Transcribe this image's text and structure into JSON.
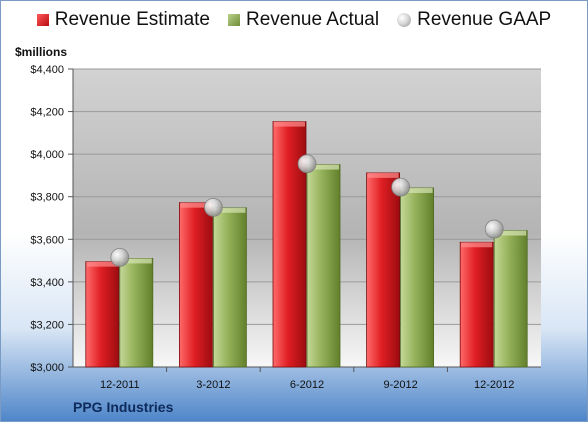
{
  "chart_data": {
    "type": "bar",
    "ylabel": "$millions",
    "categories": [
      "12-2011",
      "3-2012",
      "6-2012",
      "9-2012",
      "12-2012"
    ],
    "series": [
      {
        "name": "Revenue Estimate",
        "kind": "bar",
        "color": "#c8141b",
        "values": [
          3495,
          3772,
          4153,
          3912,
          3586
        ]
      },
      {
        "name": "Revenue Actual",
        "kind": "bar",
        "color": "#8aa650",
        "values": [
          3510,
          3748,
          3951,
          3841,
          3641
        ]
      },
      {
        "name": "Revenue GAAP",
        "kind": "marker",
        "color": "#bfbfbf",
        "values": [
          3515,
          3750,
          3955,
          3845,
          3648
        ]
      }
    ],
    "ylim": [
      3000,
      4400
    ],
    "yticks": [
      3000,
      3200,
      3400,
      3600,
      3800,
      4000,
      4200,
      4400
    ],
    "ytick_labels": [
      "$3,000",
      "$3,200",
      "$3,400",
      "$3,600",
      "$3,800",
      "$4,000",
      "$4,200",
      "$4,400"
    ],
    "grid": true,
    "legend_position": "top"
  },
  "legend": {
    "estimate": "Revenue Estimate",
    "actual": "Revenue Actual",
    "gaap": "Revenue GAAP"
  },
  "unit_label": "$millions",
  "footer": {
    "company": "PPG Industries"
  }
}
